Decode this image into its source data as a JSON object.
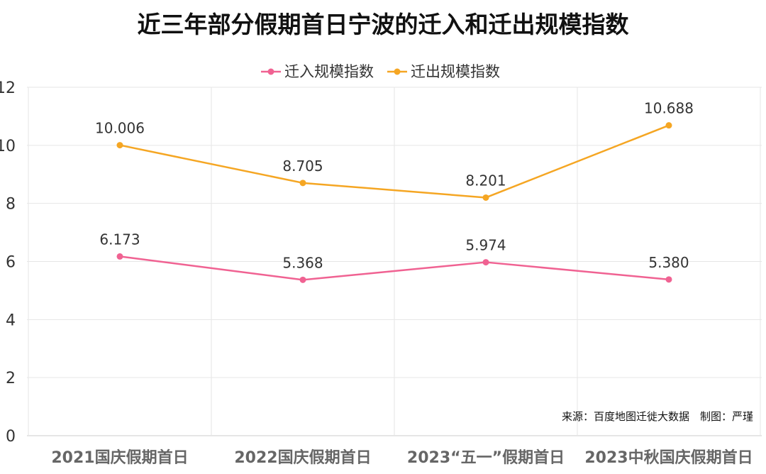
{
  "chart_data": {
    "type": "line",
    "title": "近三年部分假期首日宁波的迁入和迁出规模指数",
    "categories": [
      "2021国庆假期首日",
      "2022国庆假期首日",
      "2023“五一”假期首日",
      "2023中秋国庆假期首日"
    ],
    "series": [
      {
        "name": "迁入规模指数",
        "color": "#f06292",
        "values": [
          6.173,
          5.368,
          5.974,
          5.38
        ],
        "labels": [
          "6.173",
          "5.368",
          "5.974",
          "5.380"
        ]
      },
      {
        "name": "迁出规模指数",
        "color": "#f5a623",
        "values": [
          10.006,
          8.705,
          8.201,
          10.688
        ],
        "labels": [
          "10.006",
          "8.705",
          "8.201",
          "10.688"
        ]
      }
    ],
    "ylim": [
      0,
      12
    ],
    "yticks": [
      0,
      2,
      4,
      6,
      8,
      10,
      12
    ],
    "ytick_labels": [
      "0",
      "2",
      "4",
      "6",
      "8",
      "10",
      "12"
    ],
    "xlabel": "",
    "ylabel": "",
    "grid": true,
    "legend_position": "top-center",
    "source_note": "来源：百度地图迁徙大数据　制图：严瑾"
  }
}
